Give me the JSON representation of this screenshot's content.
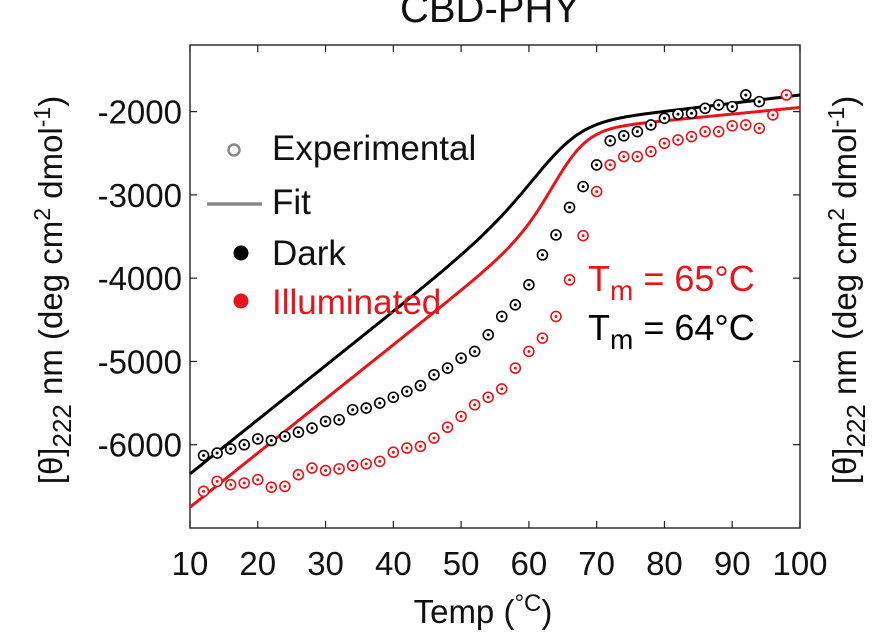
{
  "chart_data": {
    "type": "scatter",
    "title": "CBD-PHY",
    "xlabel_main": "Temp (",
    "xlabel_unit": "°C",
    "xlabel_close": ")",
    "ylabel_left": {
      "theta": "[θ]",
      "sub": "222",
      "unit_a": " nm (deg cm",
      "sup2": "2",
      "unit_b": " dmol",
      "supneg": "-1",
      "close": ")"
    },
    "ylabel_right": {
      "theta": "[θ]",
      "sub": "222",
      "unit_a": " nm (deg cm",
      "sup2": "2",
      "unit_b": " dmol",
      "supneg": "-1",
      "close": ")"
    },
    "xlim": [
      10,
      100
    ],
    "ylim": [
      -7000,
      -1200
    ],
    "xticks": [
      10,
      20,
      30,
      40,
      50,
      60,
      70,
      80,
      90,
      100
    ],
    "xtick_labels": [
      "10",
      "20",
      "30",
      "40",
      "50",
      "60",
      "70",
      "80",
      "90",
      "100"
    ],
    "yticks": [
      -6000,
      -5000,
      -4000,
      -3000,
      -2000
    ],
    "ytick_labels": [
      "-6000",
      "-5000",
      "-4000",
      "-3000",
      "-2000"
    ],
    "grid": false,
    "legend": {
      "placement": "top-left",
      "entries": [
        {
          "label": "Experimental",
          "marker": "open-circle",
          "color": "#888888"
        },
        {
          "label": "Fit",
          "marker": "line",
          "color": "#888888"
        },
        {
          "label": "Dark",
          "marker": "filled-circle",
          "color": "#000000"
        },
        {
          "label": "Illuminated",
          "marker": "filled-circle",
          "color": "#e8141c"
        }
      ]
    },
    "annotations": [
      {
        "prefix": "T",
        "sub": "m",
        "text": " = 65°C",
        "color": "#e8141c"
      },
      {
        "prefix": "T",
        "sub": "m",
        "text": " = 64°C",
        "color": "#000000"
      }
    ],
    "series": [
      {
        "name": "Dark",
        "color": "#000000",
        "fit": {
          "low_slope": 65,
          "low_intercept": -7000,
          "high_slope": 10,
          "high_intercept": -2800,
          "tm": 64,
          "width": 3.6
        },
        "x": [
          12,
          14,
          16,
          18,
          20,
          22,
          24,
          26,
          28,
          30,
          32,
          34,
          36,
          38,
          40,
          42,
          44,
          46,
          48,
          50,
          52,
          54,
          56,
          58,
          60,
          62,
          64,
          66,
          68,
          70,
          72,
          74,
          76,
          78,
          80,
          82,
          84,
          86,
          88,
          90,
          92,
          94
        ],
        "y": [
          -6130,
          -6100,
          -6050,
          -6000,
          -5930,
          -5950,
          -5900,
          -5850,
          -5800,
          -5720,
          -5700,
          -5580,
          -5560,
          -5500,
          -5430,
          -5360,
          -5290,
          -5160,
          -5080,
          -4960,
          -4880,
          -4680,
          -4460,
          -4320,
          -4080,
          -3720,
          -3480,
          -3150,
          -2900,
          -2640,
          -2350,
          -2290,
          -2240,
          -2160,
          -2080,
          -2030,
          -2020,
          -1960,
          -1920,
          -1940,
          -1800,
          -1880
        ]
      },
      {
        "name": "Illuminated",
        "color": "#e8141c",
        "fit": {
          "low_slope": 65,
          "low_intercept": -7400,
          "high_slope": 8,
          "high_intercept": -2750,
          "tm": 65,
          "width": 2.6
        },
        "x": [
          12,
          14,
          16,
          18,
          20,
          22,
          24,
          26,
          28,
          30,
          32,
          34,
          36,
          38,
          40,
          42,
          44,
          46,
          48,
          50,
          52,
          54,
          56,
          58,
          60,
          62,
          64,
          66,
          68,
          70,
          72,
          74,
          76,
          78,
          80,
          82,
          84,
          86,
          88,
          90,
          92,
          94,
          96,
          98
        ],
        "y": [
          -6560,
          -6440,
          -6480,
          -6460,
          -6420,
          -6510,
          -6500,
          -6360,
          -6280,
          -6310,
          -6290,
          -6250,
          -6230,
          -6200,
          -6090,
          -6040,
          -6020,
          -5920,
          -5790,
          -5660,
          -5520,
          -5430,
          -5330,
          -5080,
          -4880,
          -4720,
          -4460,
          -4020,
          -3490,
          -2960,
          -2640,
          -2540,
          -2540,
          -2480,
          -2380,
          -2340,
          -2300,
          -2240,
          -2240,
          -2170,
          -2160,
          -2200,
          -2040,
          -1800
        ]
      }
    ]
  }
}
